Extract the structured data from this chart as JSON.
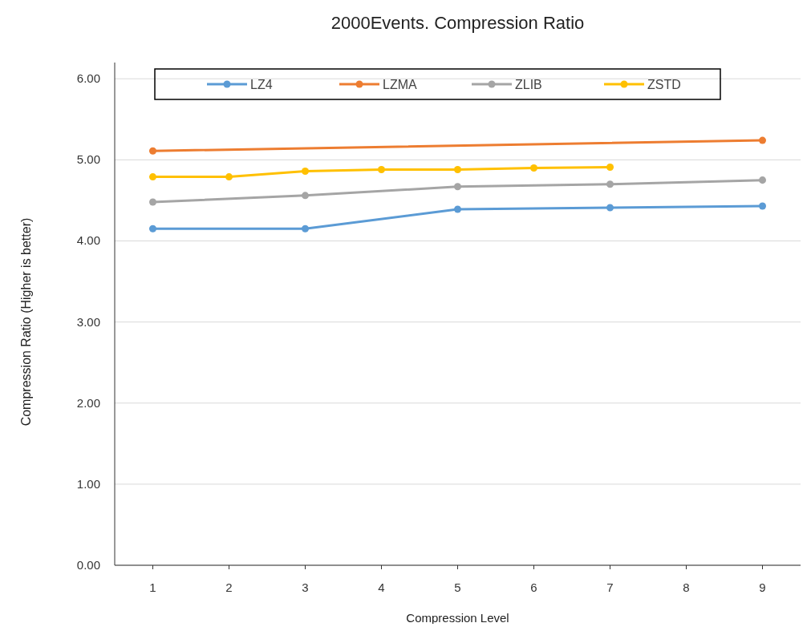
{
  "chart_data": {
    "type": "line",
    "title": "2000Events. Compression Ratio",
    "xlabel": "Compression Level",
    "ylabel": "Compression  Ratio (Higher is better)",
    "xlim": [
      0.5,
      9.5
    ],
    "xticks": [
      1,
      2,
      3,
      4,
      5,
      6,
      7,
      8,
      9
    ],
    "ylim": [
      0,
      6.2
    ],
    "yticks": [
      {
        "value": 0,
        "label": "0.00"
      },
      {
        "value": 1,
        "label": "1.00"
      },
      {
        "value": 2,
        "label": "2.00"
      },
      {
        "value": 3,
        "label": "3.00"
      },
      {
        "value": 4,
        "label": "4.00"
      },
      {
        "value": 5,
        "label": "5.00"
      },
      {
        "value": 6,
        "label": "6.00"
      }
    ],
    "grid": "y",
    "legend": "top",
    "marker": "circle",
    "line_style": "solid",
    "series": [
      {
        "name": "LZ4",
        "color": "#5b9bd5",
        "x": [
          1,
          3,
          5,
          7,
          9
        ],
        "values": [
          4.15,
          4.15,
          4.39,
          4.41,
          4.43
        ]
      },
      {
        "name": "LZMA",
        "color": "#ed7d31",
        "x": [
          1,
          9
        ],
        "values": [
          5.11,
          5.24
        ]
      },
      {
        "name": "ZLIB",
        "color": "#a5a5a5",
        "x": [
          1,
          3,
          5,
          7,
          9
        ],
        "values": [
          4.48,
          4.56,
          4.67,
          4.7,
          4.75
        ]
      },
      {
        "name": "ZSTD",
        "color": "#ffc000",
        "x": [
          1,
          2,
          3,
          4,
          5,
          6,
          7
        ],
        "values": [
          4.79,
          4.79,
          4.86,
          4.88,
          4.88,
          4.9,
          4.91
        ]
      }
    ]
  }
}
